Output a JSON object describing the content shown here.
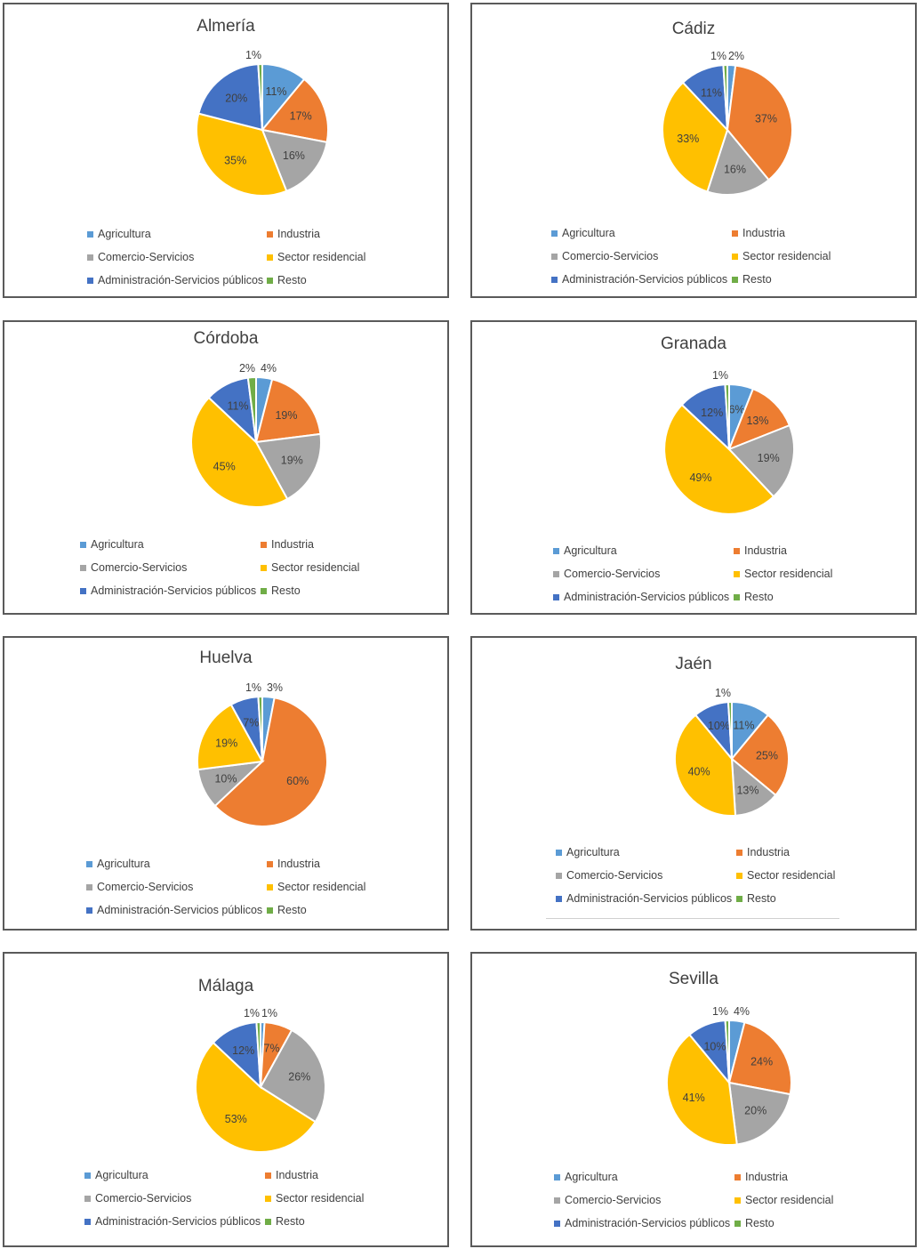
{
  "chart_data": [
    {
      "type": "pie",
      "title": "Almería",
      "categories": [
        "Agricultura",
        "Industria",
        "Comercio-Servicios",
        "Sector residencial",
        "Administración-Servicios públicos",
        "Resto"
      ],
      "values": [
        11,
        17,
        16,
        35,
        20,
        1
      ],
      "labels": [
        "11%",
        "17%",
        "16%",
        "35%",
        "20%",
        "1%"
      ],
      "legend": "bottom"
    },
    {
      "type": "pie",
      "title": "Cádiz",
      "categories": [
        "Agricultura",
        "Industria",
        "Comercio-Servicios",
        "Sector residencial",
        "Administración-Servicios públicos",
        "Resto"
      ],
      "values": [
        2,
        37,
        16,
        33,
        11,
        1
      ],
      "labels": [
        "2%",
        "37%",
        "16%",
        "33%",
        "11%",
        "1%"
      ],
      "legend": "bottom"
    },
    {
      "type": "pie",
      "title": "Córdoba",
      "categories": [
        "Agricultura",
        "Industria",
        "Comercio-Servicios",
        "Sector residencial",
        "Administración-Servicios públicos",
        "Resto"
      ],
      "values": [
        4,
        19,
        19,
        45,
        11,
        2
      ],
      "labels": [
        "4%",
        "19%",
        "19%",
        "45%",
        "11%",
        "2%"
      ],
      "legend": "bottom"
    },
    {
      "type": "pie",
      "title": "Granada",
      "categories": [
        "Agricultura",
        "Industria",
        "Comercio-Servicios",
        "Sector residencial",
        "Administración-Servicios públicos",
        "Resto"
      ],
      "values": [
        6,
        13,
        19,
        49,
        12,
        1
      ],
      "labels": [
        "6%",
        "13%",
        "19%",
        "49%",
        "12%",
        "1%"
      ],
      "legend": "bottom"
    },
    {
      "type": "pie",
      "title": "Huelva",
      "categories": [
        "Agricultura",
        "Industria",
        "Comercio-Servicios",
        "Sector residencial",
        "Administración-Servicios públicos",
        "Resto"
      ],
      "values": [
        3,
        60,
        10,
        19,
        7,
        1
      ],
      "labels": [
        "3%",
        "60%",
        "10%",
        "19%",
        "7%",
        "1%"
      ],
      "legend": "bottom"
    },
    {
      "type": "pie",
      "title": "Jaén",
      "categories": [
        "Agricultura",
        "Industria",
        "Comercio-Servicios",
        "Sector residencial",
        "Administración-Servicios públicos",
        "Resto"
      ],
      "values": [
        11,
        25,
        13,
        40,
        10,
        1
      ],
      "labels": [
        "11%",
        "25%",
        "13%",
        "40%",
        "10%",
        "1%"
      ],
      "legend": "bottom"
    },
    {
      "type": "pie",
      "title": "Málaga",
      "categories": [
        "Agricultura",
        "Industria",
        "Comercio-Servicios",
        "Sector residencial",
        "Administración-Servicios públicos",
        "Resto"
      ],
      "values": [
        1,
        7,
        26,
        53,
        12,
        1
      ],
      "labels": [
        "1%",
        "7%",
        "26%",
        "53%",
        "12%",
        "1%"
      ],
      "legend": "bottom"
    },
    {
      "type": "pie",
      "title": "Sevilla",
      "categories": [
        "Agricultura",
        "Industria",
        "Comercio-Servicios",
        "Sector residencial",
        "Administración-Servicios públicos",
        "Resto"
      ],
      "values": [
        4,
        24,
        20,
        41,
        10,
        1
      ],
      "labels": [
        "4%",
        "24%",
        "20%",
        "41%",
        "10%",
        "1%"
      ],
      "legend": "bottom"
    }
  ],
  "series_colors": {
    "Agricultura": "#5B9BD5",
    "Industria": "#ED7D31",
    "Comercio-Servicios": "#A5A5A5",
    "Sector residencial": "#FFC000",
    "Administración-Servicios públicos": "#4472C4",
    "Resto": "#70AD47"
  },
  "legend_labels": [
    "Agricultura",
    "Industria",
    "Comercio-Servicios",
    "Sector residencial",
    "Administración-Servicios públicos",
    "Resto"
  ]
}
